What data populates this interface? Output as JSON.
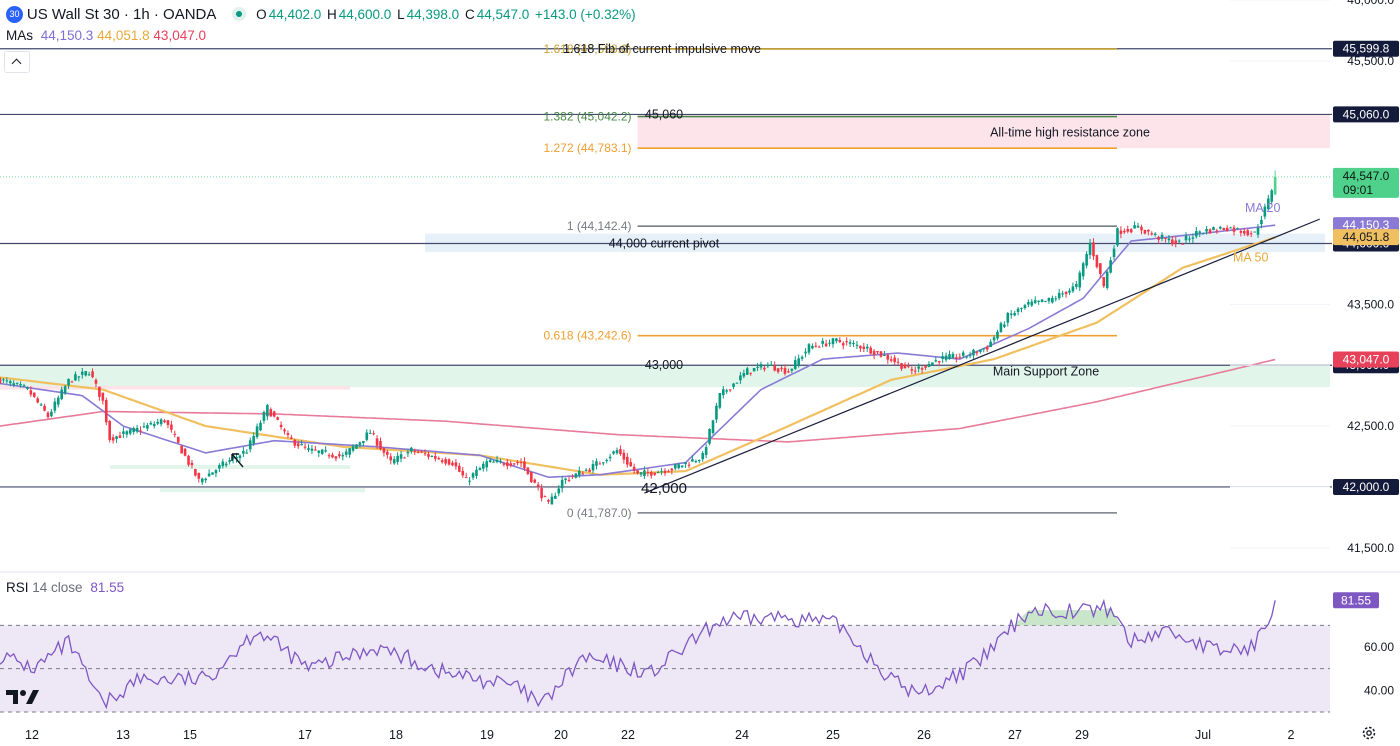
{
  "header": {
    "symbol_badge": "30",
    "title": "US Wall St 30 · 1h · OANDA",
    "ohlc": {
      "o_label": "O",
      "o": "44,402.0",
      "h_label": "H",
      "h": "44,600.0",
      "l_label": "L",
      "l": "44,398.0",
      "c_label": "C",
      "c": "44,547.0",
      "change": "+143.0 (+0.32%)"
    },
    "mas_label": "MAs",
    "mas": [
      "44,150.3",
      "44,051.8",
      "43,047.0"
    ],
    "collapse_icon": "chevron-up-icon"
  },
  "colors": {
    "up": "#089981",
    "up_bright": "#4fd18b",
    "down": "#f23645",
    "ma20": "#8a7ad6",
    "ma50": "#f0c060",
    "ma200": "#e87a9a",
    "fib_grey": "#787b86",
    "fib_orange": "#f0a030",
    "fib_green": "#4a8a4a",
    "fib_gold": "#c8a030",
    "resistance_zone": "#fce4ea",
    "support_zone": "#e2f5ea",
    "pivot_zone": "#e3eef8",
    "rsi_line": "#7e57c2",
    "rsi_band": "#ede7f6"
  },
  "chart_data": [
    {
      "type": "candlestick",
      "title": "US Wall St 30 · 1h · OANDA",
      "ylim": [
        41400,
        46000
      ],
      "y_ticks": [
        "41,500.0",
        "42,000.0",
        "42,500.0",
        "43,000.0",
        "43,500.0",
        "45,500.0",
        "46,000.0"
      ],
      "x_ticks": [
        "12",
        "13",
        "15",
        "17",
        "18",
        "19",
        "20",
        "22",
        "24",
        "25",
        "26",
        "27",
        "29",
        "Jul",
        "2"
      ],
      "horizontal_lines": [
        {
          "label": "45,599.8",
          "value": 45599.8,
          "style": "navy"
        },
        {
          "label": "45,060.0",
          "value": 45060.0,
          "style": "navy"
        },
        {
          "label": "44,000.0",
          "value": 44000.0,
          "style": "navy"
        },
        {
          "label": "43,000.0",
          "value": 43000.0,
          "style": "navy"
        },
        {
          "label": "42,000.0",
          "value": 42000.0,
          "style": "navy"
        }
      ],
      "price_labels": [
        {
          "label": "44,547.0",
          "sub": "09:01",
          "value": 44547.0,
          "color": "#4fd18b"
        },
        {
          "label": "44,150.3",
          "value": 44150.3,
          "color": "#8a7ad6"
        },
        {
          "label": "44,051.8",
          "value": 44051.8,
          "color": "#f0c060"
        },
        {
          "label": "43,047.0",
          "value": 43047.0,
          "color": "#e8415a"
        }
      ],
      "fib_levels": [
        {
          "label": "1.618 (45,598.0)",
          "value": 45598.0,
          "color": "#c8a030"
        },
        {
          "label": "1.382 (45,042.2)",
          "value": 45042.2,
          "color": "#4a8a4a"
        },
        {
          "label": "1.272 (44,783.1)",
          "value": 44783.1,
          "color": "#f0a030"
        },
        {
          "label": "1 (44,142.4)",
          "value": 44142.4,
          "color": "#787b86"
        },
        {
          "label": "0.618 (43,242.6)",
          "value": 43242.6,
          "color": "#f0a030"
        },
        {
          "label": "0 (41,787.0)",
          "value": 41787.0,
          "color": "#787b86"
        }
      ],
      "annotations": {
        "fib_note": "1.618 Fib of current impulsive move",
        "level_45060": "45,060",
        "resistance_zone": "All-time high resistance zone",
        "pivot": "44,000 current pivot",
        "level_43000": "43,000",
        "support_zone": "Main Support Zone",
        "level_42000": "42,000",
        "ma20": "MA 20",
        "ma50": "MA 50"
      },
      "anchors": [
        {
          "hour": 0,
          "price": 42880
        },
        {
          "hour": 8,
          "price": 42800
        },
        {
          "hour": 14,
          "price": 42580
        },
        {
          "hour": 20,
          "price": 42870
        },
        {
          "hour": 26,
          "price": 42950
        },
        {
          "hour": 30,
          "price": 42700
        },
        {
          "hour": 32,
          "price": 42400
        },
        {
          "hour": 38,
          "price": 42450
        },
        {
          "hour": 48,
          "price": 42550
        },
        {
          "hour": 54,
          "price": 42250
        },
        {
          "hour": 58,
          "price": 42050
        },
        {
          "hour": 66,
          "price": 42200
        },
        {
          "hour": 72,
          "price": 42300
        },
        {
          "hour": 78,
          "price": 42650
        },
        {
          "hour": 84,
          "price": 42400
        },
        {
          "hour": 90,
          "price": 42300
        },
        {
          "hour": 100,
          "price": 42250
        },
        {
          "hour": 108,
          "price": 42450
        },
        {
          "hour": 114,
          "price": 42200
        },
        {
          "hour": 120,
          "price": 42300
        },
        {
          "hour": 132,
          "price": 42200
        },
        {
          "hour": 136,
          "price": 42050
        },
        {
          "hour": 142,
          "price": 42200
        },
        {
          "hour": 152,
          "price": 42200
        },
        {
          "hour": 160,
          "price": 41850
        },
        {
          "hour": 164,
          "price": 42050
        },
        {
          "hour": 172,
          "price": 42150
        },
        {
          "hour": 180,
          "price": 42300
        },
        {
          "hour": 186,
          "price": 42100
        },
        {
          "hour": 196,
          "price": 42150
        },
        {
          "hour": 205,
          "price": 42250
        },
        {
          "hour": 210,
          "price": 42750
        },
        {
          "hour": 218,
          "price": 42950
        },
        {
          "hour": 224,
          "price": 43000
        },
        {
          "hour": 230,
          "price": 42950
        },
        {
          "hour": 236,
          "price": 43150
        },
        {
          "hour": 244,
          "price": 43200
        },
        {
          "hour": 252,
          "price": 43150
        },
        {
          "hour": 260,
          "price": 43050
        },
        {
          "hour": 266,
          "price": 42950
        },
        {
          "hour": 274,
          "price": 43050
        },
        {
          "hour": 282,
          "price": 43080
        },
        {
          "hour": 288,
          "price": 43150
        },
        {
          "hour": 294,
          "price": 43400
        },
        {
          "hour": 300,
          "price": 43500
        },
        {
          "hour": 306,
          "price": 43530
        },
        {
          "hour": 314,
          "price": 43650
        },
        {
          "hour": 318,
          "price": 44000
        },
        {
          "hour": 322,
          "price": 43650
        },
        {
          "hour": 326,
          "price": 44100
        },
        {
          "hour": 332,
          "price": 44130
        },
        {
          "hour": 338,
          "price": 44050
        },
        {
          "hour": 344,
          "price": 44000
        },
        {
          "hour": 350,
          "price": 44100
        },
        {
          "hour": 358,
          "price": 44130
        },
        {
          "hour": 366,
          "price": 44080
        },
        {
          "hour": 370,
          "price": 44350
        },
        {
          "hour": 372,
          "price": 44547
        }
      ],
      "ma20_anchors": [
        {
          "hour": 0,
          "price": 42850
        },
        {
          "hour": 24,
          "price": 42750
        },
        {
          "hour": 36,
          "price": 42500
        },
        {
          "hour": 60,
          "price": 42280
        },
        {
          "hour": 80,
          "price": 42380
        },
        {
          "hour": 110,
          "price": 42330
        },
        {
          "hour": 140,
          "price": 42260
        },
        {
          "hour": 160,
          "price": 42080
        },
        {
          "hour": 175,
          "price": 42100
        },
        {
          "hour": 200,
          "price": 42200
        },
        {
          "hour": 222,
          "price": 42800
        },
        {
          "hour": 240,
          "price": 43050
        },
        {
          "hour": 262,
          "price": 43100
        },
        {
          "hour": 280,
          "price": 43050
        },
        {
          "hour": 300,
          "price": 43300
        },
        {
          "hour": 316,
          "price": 43550
        },
        {
          "hour": 330,
          "price": 44020
        },
        {
          "hour": 350,
          "price": 44080
        },
        {
          "hour": 372,
          "price": 44150
        }
      ],
      "ma50_anchors": [
        {
          "hour": 0,
          "price": 42900
        },
        {
          "hour": 30,
          "price": 42800
        },
        {
          "hour": 60,
          "price": 42500
        },
        {
          "hour": 100,
          "price": 42330
        },
        {
          "hour": 140,
          "price": 42260
        },
        {
          "hour": 175,
          "price": 42100
        },
        {
          "hour": 200,
          "price": 42130
        },
        {
          "hour": 230,
          "price": 42500
        },
        {
          "hour": 260,
          "price": 42880
        },
        {
          "hour": 290,
          "price": 43050
        },
        {
          "hour": 320,
          "price": 43350
        },
        {
          "hour": 345,
          "price": 43800
        },
        {
          "hour": 372,
          "price": 44050
        }
      ],
      "ma200_anchors": [
        {
          "hour": 0,
          "price": 42500
        },
        {
          "hour": 30,
          "price": 42620
        },
        {
          "hour": 80,
          "price": 42600
        },
        {
          "hour": 130,
          "price": 42540
        },
        {
          "hour": 180,
          "price": 42430
        },
        {
          "hour": 230,
          "price": 42370
        },
        {
          "hour": 280,
          "price": 42480
        },
        {
          "hour": 320,
          "price": 42700
        },
        {
          "hour": 350,
          "price": 42900
        },
        {
          "hour": 372,
          "price": 43047
        }
      ],
      "trendline": {
        "from_hour": 188,
        "from_price": 41950,
        "to_hour": 385,
        "to_price": 44200
      }
    },
    {
      "type": "line",
      "title": "RSI",
      "label": "RSI",
      "params": "14 close",
      "value": "81.55",
      "ylim": [
        30,
        90
      ],
      "y_ticks": [
        "40.00",
        "60.00"
      ],
      "bands": [
        70,
        50,
        30
      ],
      "anchors": [
        {
          "hour": 0,
          "price": 56
        },
        {
          "hour": 10,
          "price": 50
        },
        {
          "hour": 20,
          "price": 62
        },
        {
          "hour": 30,
          "price": 33
        },
        {
          "hour": 40,
          "price": 45
        },
        {
          "hour": 60,
          "price": 45
        },
        {
          "hour": 75,
          "price": 68
        },
        {
          "hour": 90,
          "price": 50
        },
        {
          "hour": 110,
          "price": 60
        },
        {
          "hour": 130,
          "price": 48
        },
        {
          "hour": 150,
          "price": 42
        },
        {
          "hour": 158,
          "price": 33
        },
        {
          "hour": 170,
          "price": 55
        },
        {
          "hour": 190,
          "price": 48
        },
        {
          "hour": 210,
          "price": 72
        },
        {
          "hour": 230,
          "price": 74
        },
        {
          "hour": 245,
          "price": 70
        },
        {
          "hour": 260,
          "price": 45
        },
        {
          "hour": 268,
          "price": 38
        },
        {
          "hour": 285,
          "price": 52
        },
        {
          "hour": 300,
          "price": 77
        },
        {
          "hour": 320,
          "price": 77
        },
        {
          "hour": 324,
          "price": 78
        },
        {
          "hour": 330,
          "price": 62
        },
        {
          "hour": 340,
          "price": 68
        },
        {
          "hour": 355,
          "price": 58
        },
        {
          "hour": 366,
          "price": 60
        },
        {
          "hour": 372,
          "price": 81.55
        }
      ]
    }
  ]
}
